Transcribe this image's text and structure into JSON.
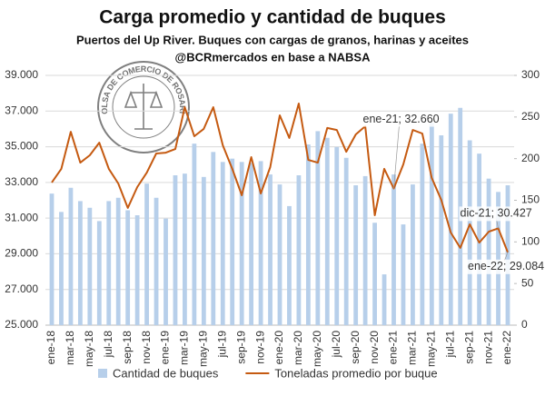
{
  "chart_data": {
    "type": "bar_line",
    "title": "Carga promedio y cantidad de buques",
    "subtitle": "Puertos del Up River. Buques con cargas de granos, harinas y aceites",
    "source": "@BCRmercados en base a NABSA",
    "logo_text": "BOLSA DE COMERCIO DE ROSARIO",
    "categories": [
      "ene-18",
      null,
      "mar-18",
      null,
      "may-18",
      null,
      "jul-18",
      null,
      "sep-18",
      null,
      "nov-18",
      null,
      "ene-19",
      null,
      "mar-19",
      null,
      "may-19",
      null,
      "jul-19",
      null,
      "sep-19",
      null,
      "nov-19",
      null,
      "ene-20",
      null,
      "mar-20",
      null,
      "may-20",
      null,
      "jul-20",
      null,
      "sep-20",
      null,
      "nov-20",
      null,
      "ene-21",
      null,
      "mar-21",
      null,
      "may-21",
      null,
      "jul-21",
      null,
      "sep-21",
      null,
      "nov-21",
      null,
      "ene-22"
    ],
    "series": [
      {
        "name": "Cantidad de buques",
        "color": "#b7cfea",
        "axis": "y2",
        "values": [
          158,
          136,
          165,
          149,
          141,
          125,
          149,
          153,
          138,
          132,
          170,
          153,
          128,
          180,
          182,
          218,
          178,
          208,
          196,
          200,
          196,
          195,
          197,
          181,
          169,
          143,
          180,
          217,
          233,
          225,
          214,
          201,
          168,
          179,
          123,
          61,
          181,
          121,
          169,
          218,
          243,
          228,
          254,
          261,
          222,
          206,
          176,
          160,
          168
        ]
      },
      {
        "name": "Toneladas promedio por buque",
        "color": "#c55a11",
        "axis": "y",
        "values": [
          33000,
          33760,
          35840,
          34110,
          34520,
          35230,
          33760,
          32940,
          31570,
          32740,
          33550,
          34620,
          34670,
          34870,
          37220,
          35590,
          36000,
          37220,
          35080,
          33760,
          32280,
          34420,
          32380,
          33860,
          36760,
          35490,
          37420,
          34260,
          34110,
          36050,
          35940,
          34720,
          35690,
          36150,
          31160,
          33760,
          32660,
          34010,
          35940,
          35740,
          33250,
          32020,
          30190,
          29330,
          30650,
          29630,
          30240,
          30427,
          29084
        ],
        "value_labels": [
          null,
          null,
          null,
          null,
          null,
          null,
          null,
          null,
          null,
          null,
          null,
          null,
          null,
          null,
          null,
          null,
          null,
          null,
          null,
          null,
          null,
          null,
          null,
          null,
          null,
          null,
          null,
          null,
          null,
          null,
          null,
          null,
          null,
          null,
          null,
          null,
          "ene-21; 32.660",
          null,
          null,
          null,
          null,
          null,
          null,
          null,
          null,
          null,
          null,
          "dic-21; 30.427",
          "ene-22; 29.084"
        ]
      }
    ],
    "ylim": [
      25000,
      39000
    ],
    "yticks": [
      {
        "value": 25000,
        "label": "25.000"
      },
      {
        "value": 27000,
        "label": "27.000"
      },
      {
        "value": 29000,
        "label": "29.000"
      },
      {
        "value": 31000,
        "label": "31.000"
      },
      {
        "value": 33000,
        "label": "33.000"
      },
      {
        "value": 35000,
        "label": "35.000"
      },
      {
        "value": 37000,
        "label": "37.000"
      },
      {
        "value": 39000,
        "label": "39.000"
      }
    ],
    "y2lim": [
      0,
      300
    ],
    "y2ticks": [
      0,
      50,
      100,
      150,
      200,
      250,
      300
    ],
    "grid": true,
    "legend": "bottom"
  }
}
